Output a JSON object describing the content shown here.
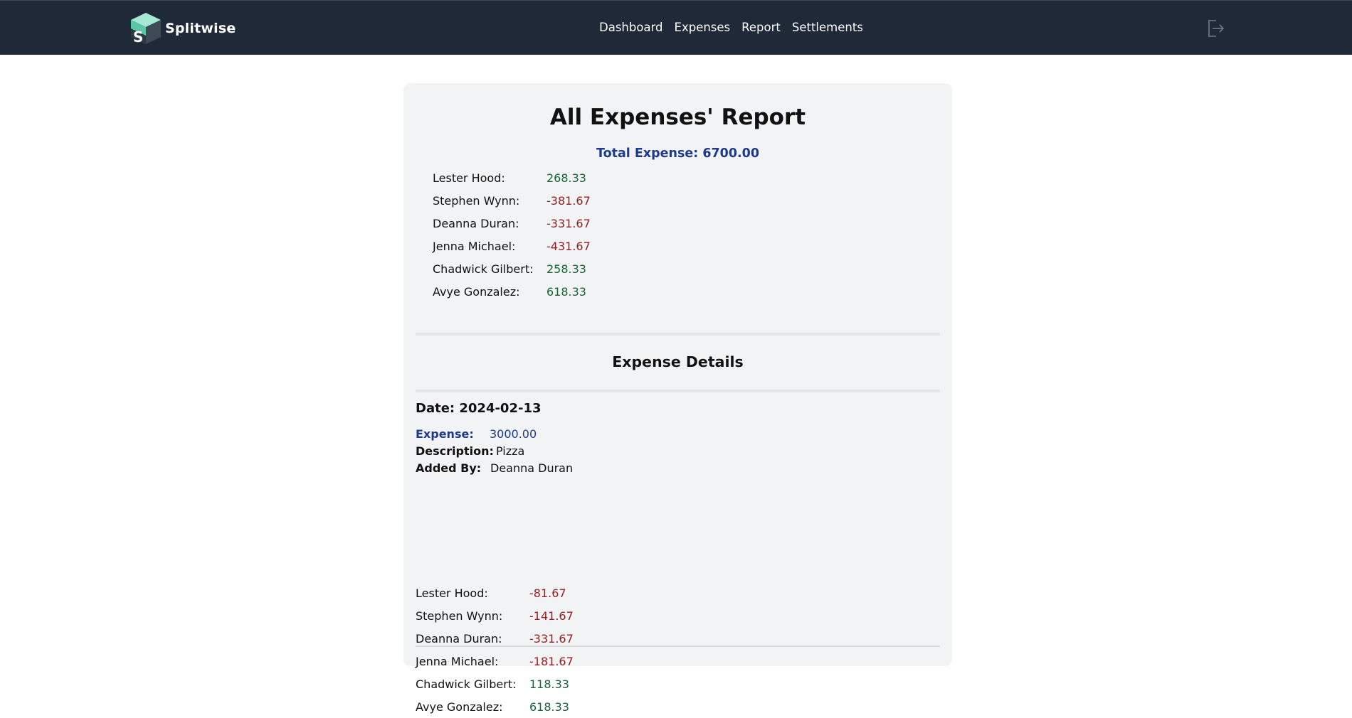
{
  "app": {
    "name": "Splitwise",
    "colors": {
      "navbar": "#1f2937",
      "positive": "#166534",
      "negative": "#991b1b",
      "accent": "#1e3a8a"
    }
  },
  "nav": {
    "items": [
      {
        "label": "Dashboard"
      },
      {
        "label": "Expenses"
      },
      {
        "label": "Report"
      },
      {
        "label": "Settlements"
      }
    ],
    "logout_icon": "logout-icon"
  },
  "report": {
    "title": "All Expenses' Report",
    "total_label": "Total Expense: 6700.00",
    "balances": [
      {
        "name": "Lester Hood:",
        "value": "268.33",
        "sign": "pos"
      },
      {
        "name": "Stephen Wynn:",
        "value": "-381.67",
        "sign": "neg"
      },
      {
        "name": "Deanna Duran:",
        "value": "-331.67",
        "sign": "neg"
      },
      {
        "name": "Jenna Michael:",
        "value": "-431.67",
        "sign": "neg"
      },
      {
        "name": "Chadwick Gilbert:",
        "value": "258.33",
        "sign": "pos"
      },
      {
        "name": "Avye Gonzalez:",
        "value": "618.33",
        "sign": "pos"
      }
    ],
    "details_title": "Expense Details",
    "expense": {
      "date_label": "Date: 2024-02-13",
      "expense_label": "Expense:",
      "expense_value": "3000.00",
      "description_label": "Description:",
      "description_value": "Pizza",
      "added_by_label": "Added By:",
      "added_by_value": "Deanna Duran",
      "shares": [
        {
          "name": "Lester Hood:",
          "value": "-81.67",
          "sign": "neg"
        },
        {
          "name": "Stephen Wynn:",
          "value": "-141.67",
          "sign": "neg"
        },
        {
          "name": "Deanna Duran:",
          "value": "-331.67",
          "sign": "neg"
        },
        {
          "name": "Jenna Michael:",
          "value": "-181.67",
          "sign": "neg"
        },
        {
          "name": "Chadwick Gilbert:",
          "value": "118.33",
          "sign": "pos"
        },
        {
          "name": "Avye Gonzalez:",
          "value": "618.33",
          "sign": "pos"
        }
      ]
    }
  }
}
